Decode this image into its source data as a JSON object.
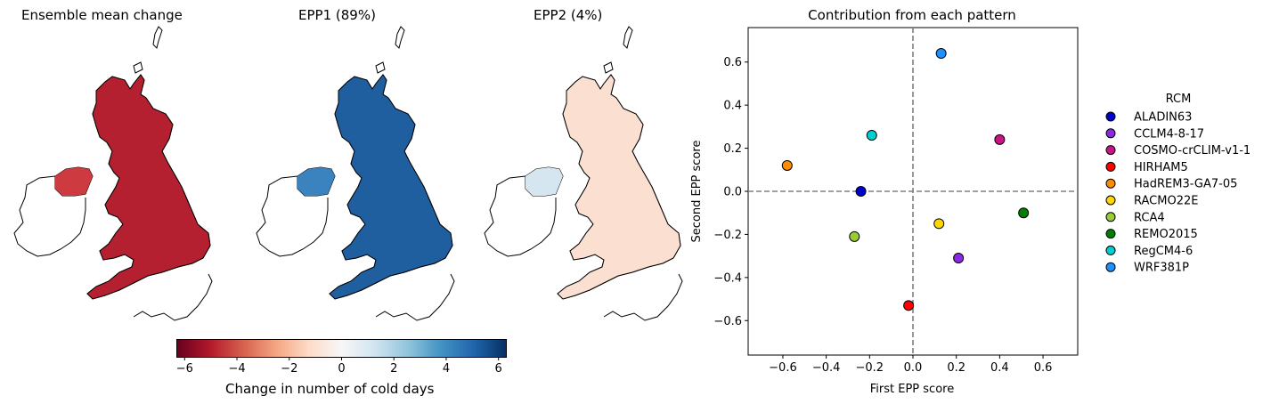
{
  "maps": [
    {
      "title": "Ensemble mean change",
      "fill": "#b72230",
      "ni_fill": "#cd3a3f",
      "gb_fill": "#b42030"
    },
    {
      "title": "EPP1 (89%)",
      "fill": "#2d6fb0",
      "ni_fill": "#3b83bf",
      "gb_fill": "#1f5f9f"
    },
    {
      "title": "EPP2 (4%)",
      "fill": "#e8f1f7",
      "ni_fill": "#d6e6f1",
      "gb_fill": "#fbe0d2"
    }
  ],
  "colorbar": {
    "label": "Change in number of cold days",
    "ticks": [
      "−6",
      "−4",
      "−2",
      "0",
      "2",
      "4",
      "6"
    ],
    "range": [
      -6.3,
      6.3
    ],
    "colors": [
      "#67001f",
      "#b2182b",
      "#d6604d",
      "#f4a582",
      "#fddbc7",
      "#f7f7f7",
      "#d1e5f0",
      "#92c5de",
      "#4393c3",
      "#2166ac",
      "#053061"
    ]
  },
  "chart_data": {
    "type": "scatter",
    "title": "Contribution from each pattern",
    "xlabel": "First EPP score",
    "ylabel": "Second EPP score",
    "xlim": [
      -0.76,
      0.76
    ],
    "ylim": [
      -0.76,
      0.76
    ],
    "xticks": [
      -0.6,
      -0.4,
      -0.2,
      0.0,
      0.2,
      0.4,
      0.6
    ],
    "yticks": [
      -0.6,
      -0.4,
      -0.2,
      0.0,
      0.2,
      0.4,
      0.6
    ],
    "xtick_labels": [
      "−0.6",
      "−0.4",
      "−0.2",
      "0.0",
      "0.2",
      "0.4",
      "0.6"
    ],
    "ytick_labels": [
      "−0.6",
      "−0.4",
      "−0.2",
      "0.0",
      "0.2",
      "0.4",
      "0.6"
    ],
    "grid": false,
    "reference_lines": {
      "x": 0,
      "y": 0,
      "style": "dashed",
      "color": "#808080"
    },
    "legend": {
      "title": "RCM",
      "placement": "outside-right"
    },
    "series": [
      {
        "name": "ALADIN63",
        "x": -0.24,
        "y": 0.0,
        "color": "#0000cd"
      },
      {
        "name": "CCLM4-8-17",
        "x": 0.21,
        "y": -0.31,
        "color": "#8a2be2"
      },
      {
        "name": "COSMO-crCLIM-v1-1",
        "x": 0.4,
        "y": 0.24,
        "color": "#c71585"
      },
      {
        "name": "HIRHAM5",
        "x": -0.02,
        "y": -0.53,
        "color": "#ff0000"
      },
      {
        "name": "HadREM3-GA7-05",
        "x": -0.58,
        "y": 0.12,
        "color": "#ff8c00"
      },
      {
        "name": "RACMO22E",
        "x": 0.12,
        "y": -0.15,
        "color": "#ffd700"
      },
      {
        "name": "RCA4",
        "x": -0.27,
        "y": -0.21,
        "color": "#9acd32"
      },
      {
        "name": "REMO2015",
        "x": 0.51,
        "y": -0.1,
        "color": "#008000"
      },
      {
        "name": "RegCM4-6",
        "x": -0.19,
        "y": 0.26,
        "color": "#00ced1"
      },
      {
        "name": "WRF381P",
        "x": 0.13,
        "y": 0.64,
        "color": "#1e90ff"
      }
    ]
  }
}
